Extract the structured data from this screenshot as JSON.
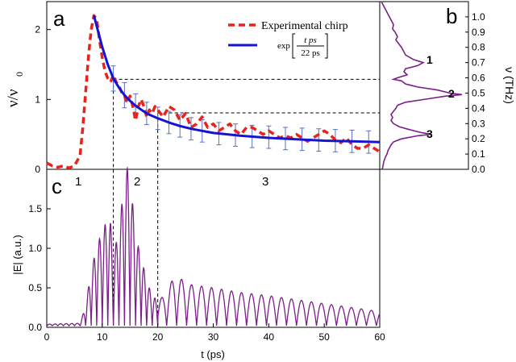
{
  "chart_data": [
    {
      "panel": "a",
      "type": "line",
      "panel_label": "a",
      "ylabel_main": "ν/ν",
      "ylabel_sub": "0",
      "xlim": [
        0,
        60
      ],
      "ylim": [
        0,
        2.4
      ],
      "yticks": [
        0,
        1,
        2
      ],
      "legend": {
        "placement": "top-right",
        "experimental_label": "Experimental chirp",
        "fit_prefix": "exp",
        "fit_numerator": "t ps",
        "fit_denominator": "22 ps"
      },
      "region_labels": [
        "1",
        "2",
        "3"
      ],
      "series": [
        {
          "name": "Experimental chirp",
          "color": "#e8231c",
          "style": "dashed",
          "x": [
            0,
            1,
            2,
            3,
            4,
            5,
            6,
            6.5,
            7,
            7.5,
            8,
            8.5,
            9,
            9.5,
            10,
            10.5,
            11,
            11.5,
            12,
            12.5,
            13,
            13.5,
            14,
            14.5,
            15,
            15.5,
            16,
            16.5,
            17,
            17.5,
            18,
            18.5,
            19,
            19.5,
            20,
            21,
            22,
            23,
            24,
            25,
            26,
            27,
            28,
            29,
            30,
            31,
            32,
            33,
            34,
            35,
            36,
            37,
            38,
            39,
            40,
            41,
            42,
            43,
            44,
            45,
            46,
            47,
            48,
            49,
            50,
            51,
            52,
            53,
            54,
            55,
            56,
            57,
            58,
            59,
            60
          ],
          "y": [
            0.09,
            0.05,
            0.03,
            0.05,
            0.02,
            0.05,
            0.2,
            0.6,
            1.1,
            1.6,
            2.0,
            2.2,
            2.15,
            1.85,
            1.6,
            1.4,
            1.3,
            1.25,
            1.35,
            1.25,
            1.2,
            1.1,
            1.05,
            0.95,
            1.05,
            0.9,
            0.7,
            0.9,
            1.0,
            0.9,
            0.75,
            0.85,
            0.8,
            0.9,
            0.85,
            0.75,
            0.9,
            0.85,
            0.7,
            0.8,
            0.6,
            0.65,
            0.75,
            0.6,
            0.65,
            0.55,
            0.6,
            0.65,
            0.55,
            0.5,
            0.6,
            0.6,
            0.55,
            0.5,
            0.55,
            0.5,
            0.45,
            0.48,
            0.45,
            0.5,
            0.45,
            0.4,
            0.45,
            0.5,
            0.55,
            0.5,
            0.42,
            0.38,
            0.45,
            0.35,
            0.3,
            0.3,
            0.35,
            0.3,
            0.25
          ]
        },
        {
          "name": "exp fit",
          "color": "#1414d2",
          "style": "solid",
          "x": [
            8.5,
            9,
            9.5,
            10,
            11,
            12,
            13,
            14,
            15,
            16,
            18,
            20,
            22,
            24,
            26,
            28,
            30,
            35,
            40,
            45,
            50,
            55,
            60
          ],
          "y": [
            2.2,
            2.05,
            1.9,
            1.75,
            1.5,
            1.3,
            1.17,
            1.06,
            0.98,
            0.91,
            0.8,
            0.73,
            0.67,
            0.62,
            0.58,
            0.55,
            0.52,
            0.48,
            0.45,
            0.43,
            0.41,
            0.4,
            0.39
          ]
        }
      ],
      "error_bars": {
        "color": "#5a6ec8",
        "x": [
          12,
          14,
          16,
          18,
          20,
          22,
          24,
          26,
          28,
          31,
          34,
          37,
          40,
          43,
          46,
          49,
          52,
          55,
          58
        ],
        "y": [
          1.3,
          1.06,
          0.91,
          0.8,
          0.73,
          0.67,
          0.62,
          0.58,
          0.55,
          0.51,
          0.49,
          0.47,
          0.46,
          0.44,
          0.43,
          0.42,
          0.41,
          0.4,
          0.39
        ],
        "err": [
          0.18,
          0.18,
          0.17,
          0.16,
          0.16,
          0.16,
          0.16,
          0.16,
          0.16,
          0.16,
          0.16,
          0.16,
          0.16,
          0.16,
          0.16,
          0.16,
          0.16,
          0.16,
          0.16
        ]
      },
      "guide_lines": {
        "vertical_x": [
          12,
          20
        ],
        "horizontal_thz": [
          0.59,
          0.37
        ]
      }
    },
    {
      "panel": "b",
      "type": "line",
      "panel_label": "b",
      "ylabel": "ν (THz)",
      "ylim": [
        0,
        1.1
      ],
      "yticks": [
        "0.0",
        "0.1",
        "0.2",
        "0.3",
        "0.4",
        "0.5",
        "0.6",
        "0.7",
        "0.8",
        "0.9",
        "1.0"
      ],
      "peak_labels": [
        {
          "label": "1",
          "thz": 0.69
        },
        {
          "label": "2",
          "thz": 0.49
        },
        {
          "label": "3",
          "thz": 0.23
        }
      ],
      "series": [
        {
          "name": "spectrum",
          "color": "#7b1e8a",
          "thz": [
            1.1,
            1.05,
            1.0,
            0.98,
            0.95,
            0.92,
            0.9,
            0.87,
            0.85,
            0.82,
            0.8,
            0.77,
            0.75,
            0.72,
            0.7,
            0.68,
            0.66,
            0.64,
            0.62,
            0.6,
            0.59,
            0.58,
            0.56,
            0.54,
            0.52,
            0.5,
            0.49,
            0.48,
            0.46,
            0.44,
            0.42,
            0.4,
            0.38,
            0.36,
            0.34,
            0.32,
            0.3,
            0.28,
            0.26,
            0.24,
            0.23,
            0.22,
            0.2,
            0.18,
            0.16,
            0.14,
            0.12,
            0.1,
            0.08,
            0.05,
            0.02,
            0.0
          ],
          "amplitude": [
            0.0,
            0.05,
            0.1,
            0.12,
            0.15,
            0.14,
            0.17,
            0.2,
            0.18,
            0.22,
            0.25,
            0.28,
            0.3,
            0.4,
            0.52,
            0.45,
            0.3,
            0.28,
            0.32,
            0.2,
            0.15,
            0.25,
            0.3,
            0.45,
            0.7,
            0.85,
            1.0,
            0.8,
            0.55,
            0.3,
            0.2,
            0.18,
            0.15,
            0.12,
            0.14,
            0.12,
            0.15,
            0.22,
            0.35,
            0.5,
            0.62,
            0.45,
            0.25,
            0.15,
            0.12,
            0.1,
            0.08,
            0.07,
            0.05,
            0.03,
            0.02,
            0.01
          ]
        }
      ]
    },
    {
      "panel": "c",
      "type": "line",
      "panel_label": "c",
      "xlabel": "t (ps)",
      "ylabel": "|E| (a.u.)",
      "xlim": [
        0,
        60
      ],
      "ylim": [
        0,
        2.0
      ],
      "xticks": [
        0,
        10,
        20,
        30,
        40,
        50,
        60
      ],
      "yticks": [
        "0.0",
        "0.5",
        "1.0",
        "1.5"
      ],
      "series": [
        {
          "name": "field amplitude",
          "color": "#7b1e8a",
          "oscillation_period_ps": 1.0,
          "envelope_t": [
            0,
            6,
            7,
            8,
            9,
            10,
            11,
            11.5,
            12,
            13,
            14,
            14.5,
            15,
            16,
            17,
            18,
            19,
            20,
            21,
            22,
            23,
            24,
            26,
            28,
            30,
            35,
            40,
            45,
            50,
            55,
            60
          ],
          "envelope_amp": [
            0.02,
            0.03,
            0.25,
            0.7,
            1.0,
            1.2,
            1.35,
            1.3,
            0.9,
            1.2,
            1.85,
            2.0,
            1.95,
            1.1,
            0.9,
            0.55,
            0.4,
            0.3,
            0.38,
            0.5,
            0.62,
            0.6,
            0.52,
            0.5,
            0.48,
            0.42,
            0.38,
            0.33,
            0.28,
            0.23,
            0.18
          ]
        }
      ]
    }
  ]
}
